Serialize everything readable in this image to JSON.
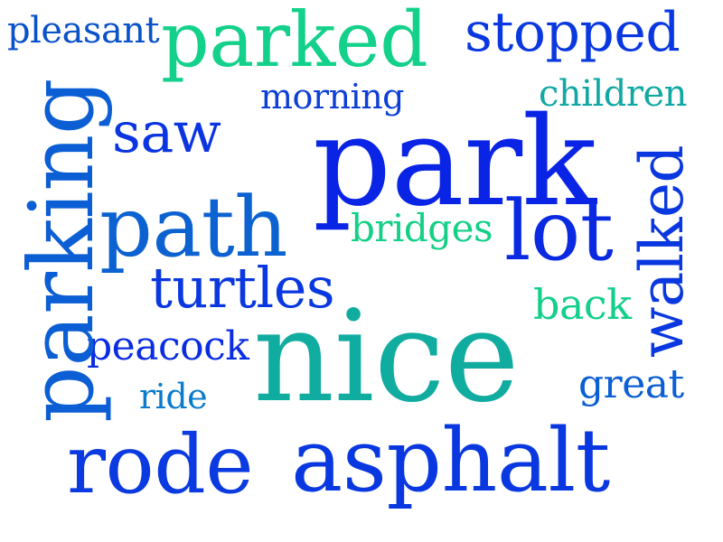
{
  "words": {
    "pleasant": {
      "text": "pleasant",
      "color": "#0a52c9"
    },
    "parked": {
      "text": "parked",
      "color": "#13d18a"
    },
    "stopped": {
      "text": "stopped",
      "color": "#0a38e0"
    },
    "morning": {
      "text": "morning",
      "color": "#0d3fd6"
    },
    "children": {
      "text": "children",
      "color": "#11a8a3"
    },
    "saw": {
      "text": "saw",
      "color": "#0a35e0"
    },
    "park": {
      "text": "park",
      "color": "#0a24e6"
    },
    "path": {
      "text": "path",
      "color": "#0b62d0"
    },
    "bridges": {
      "text": "bridges",
      "color": "#14cf86"
    },
    "lot": {
      "text": "lot",
      "color": "#0a2ae2"
    },
    "turtles": {
      "text": "turtles",
      "color": "#0a38e0"
    },
    "back": {
      "text": "back",
      "color": "#14cf8c"
    },
    "nice": {
      "text": "nice",
      "color": "#11aca0"
    },
    "peacock": {
      "text": "peacock",
      "color": "#0a2de4"
    },
    "ride": {
      "text": "ride",
      "color": "#0b7bcb"
    },
    "great": {
      "text": "great",
      "color": "#0b5ed4"
    },
    "rode": {
      "text": "rode",
      "color": "#0a3ae0"
    },
    "asphalt": {
      "text": "asphalt",
      "color": "#0a38e0"
    },
    "parking": {
      "text": "parking",
      "color": "#0b5ed4"
    },
    "walked": {
      "text": "walked",
      "color": "#0a38e0"
    }
  }
}
